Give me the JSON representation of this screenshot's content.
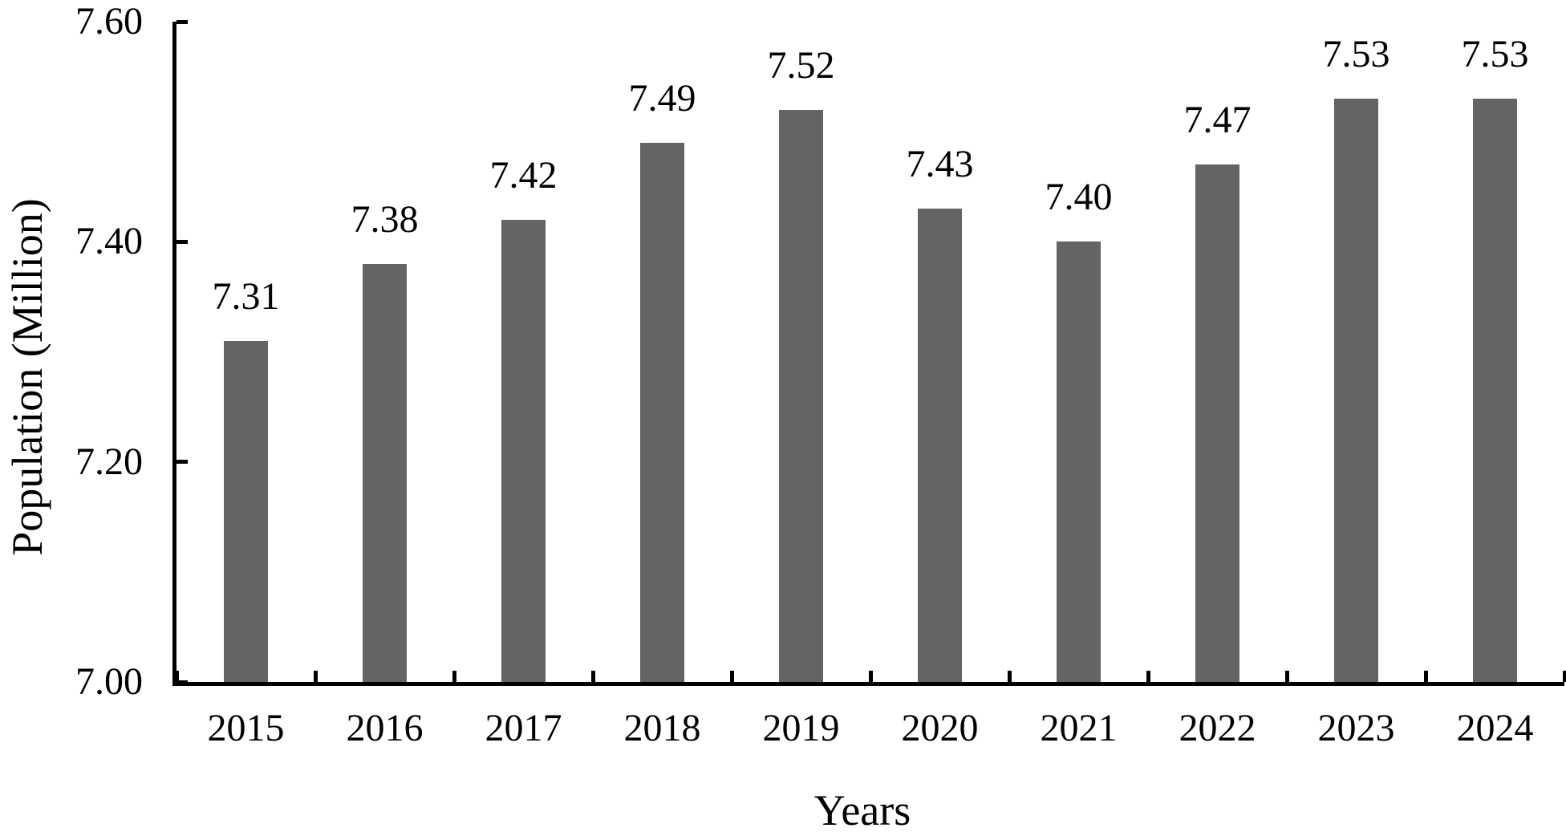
{
  "chart_data": {
    "type": "bar",
    "title": "",
    "categories": [
      "2015",
      "2016",
      "2017",
      "2018",
      "2019",
      "2020",
      "2021",
      "2022",
      "2023",
      "2024"
    ],
    "values": [
      7.31,
      7.38,
      7.42,
      7.49,
      7.52,
      7.43,
      7.4,
      7.47,
      7.53,
      7.53
    ],
    "value_labels": [
      "7.31",
      "7.38",
      "7.42",
      "7.49",
      "7.52",
      "7.43",
      "7.40",
      "7.47",
      "7.53",
      "7.53"
    ],
    "xlabel": "Years",
    "ylabel": "Population (Million)",
    "ylim": [
      7.0,
      7.6
    ],
    "ytick_values": [
      7.0,
      7.2,
      7.4,
      7.6
    ],
    "ytick_labels": [
      "7.00",
      "7.20",
      "7.40",
      "7.60"
    ],
    "grid": false,
    "legend": null,
    "bar_color": "#626466",
    "axis_color": "#000000",
    "text_color": "#000000"
  }
}
